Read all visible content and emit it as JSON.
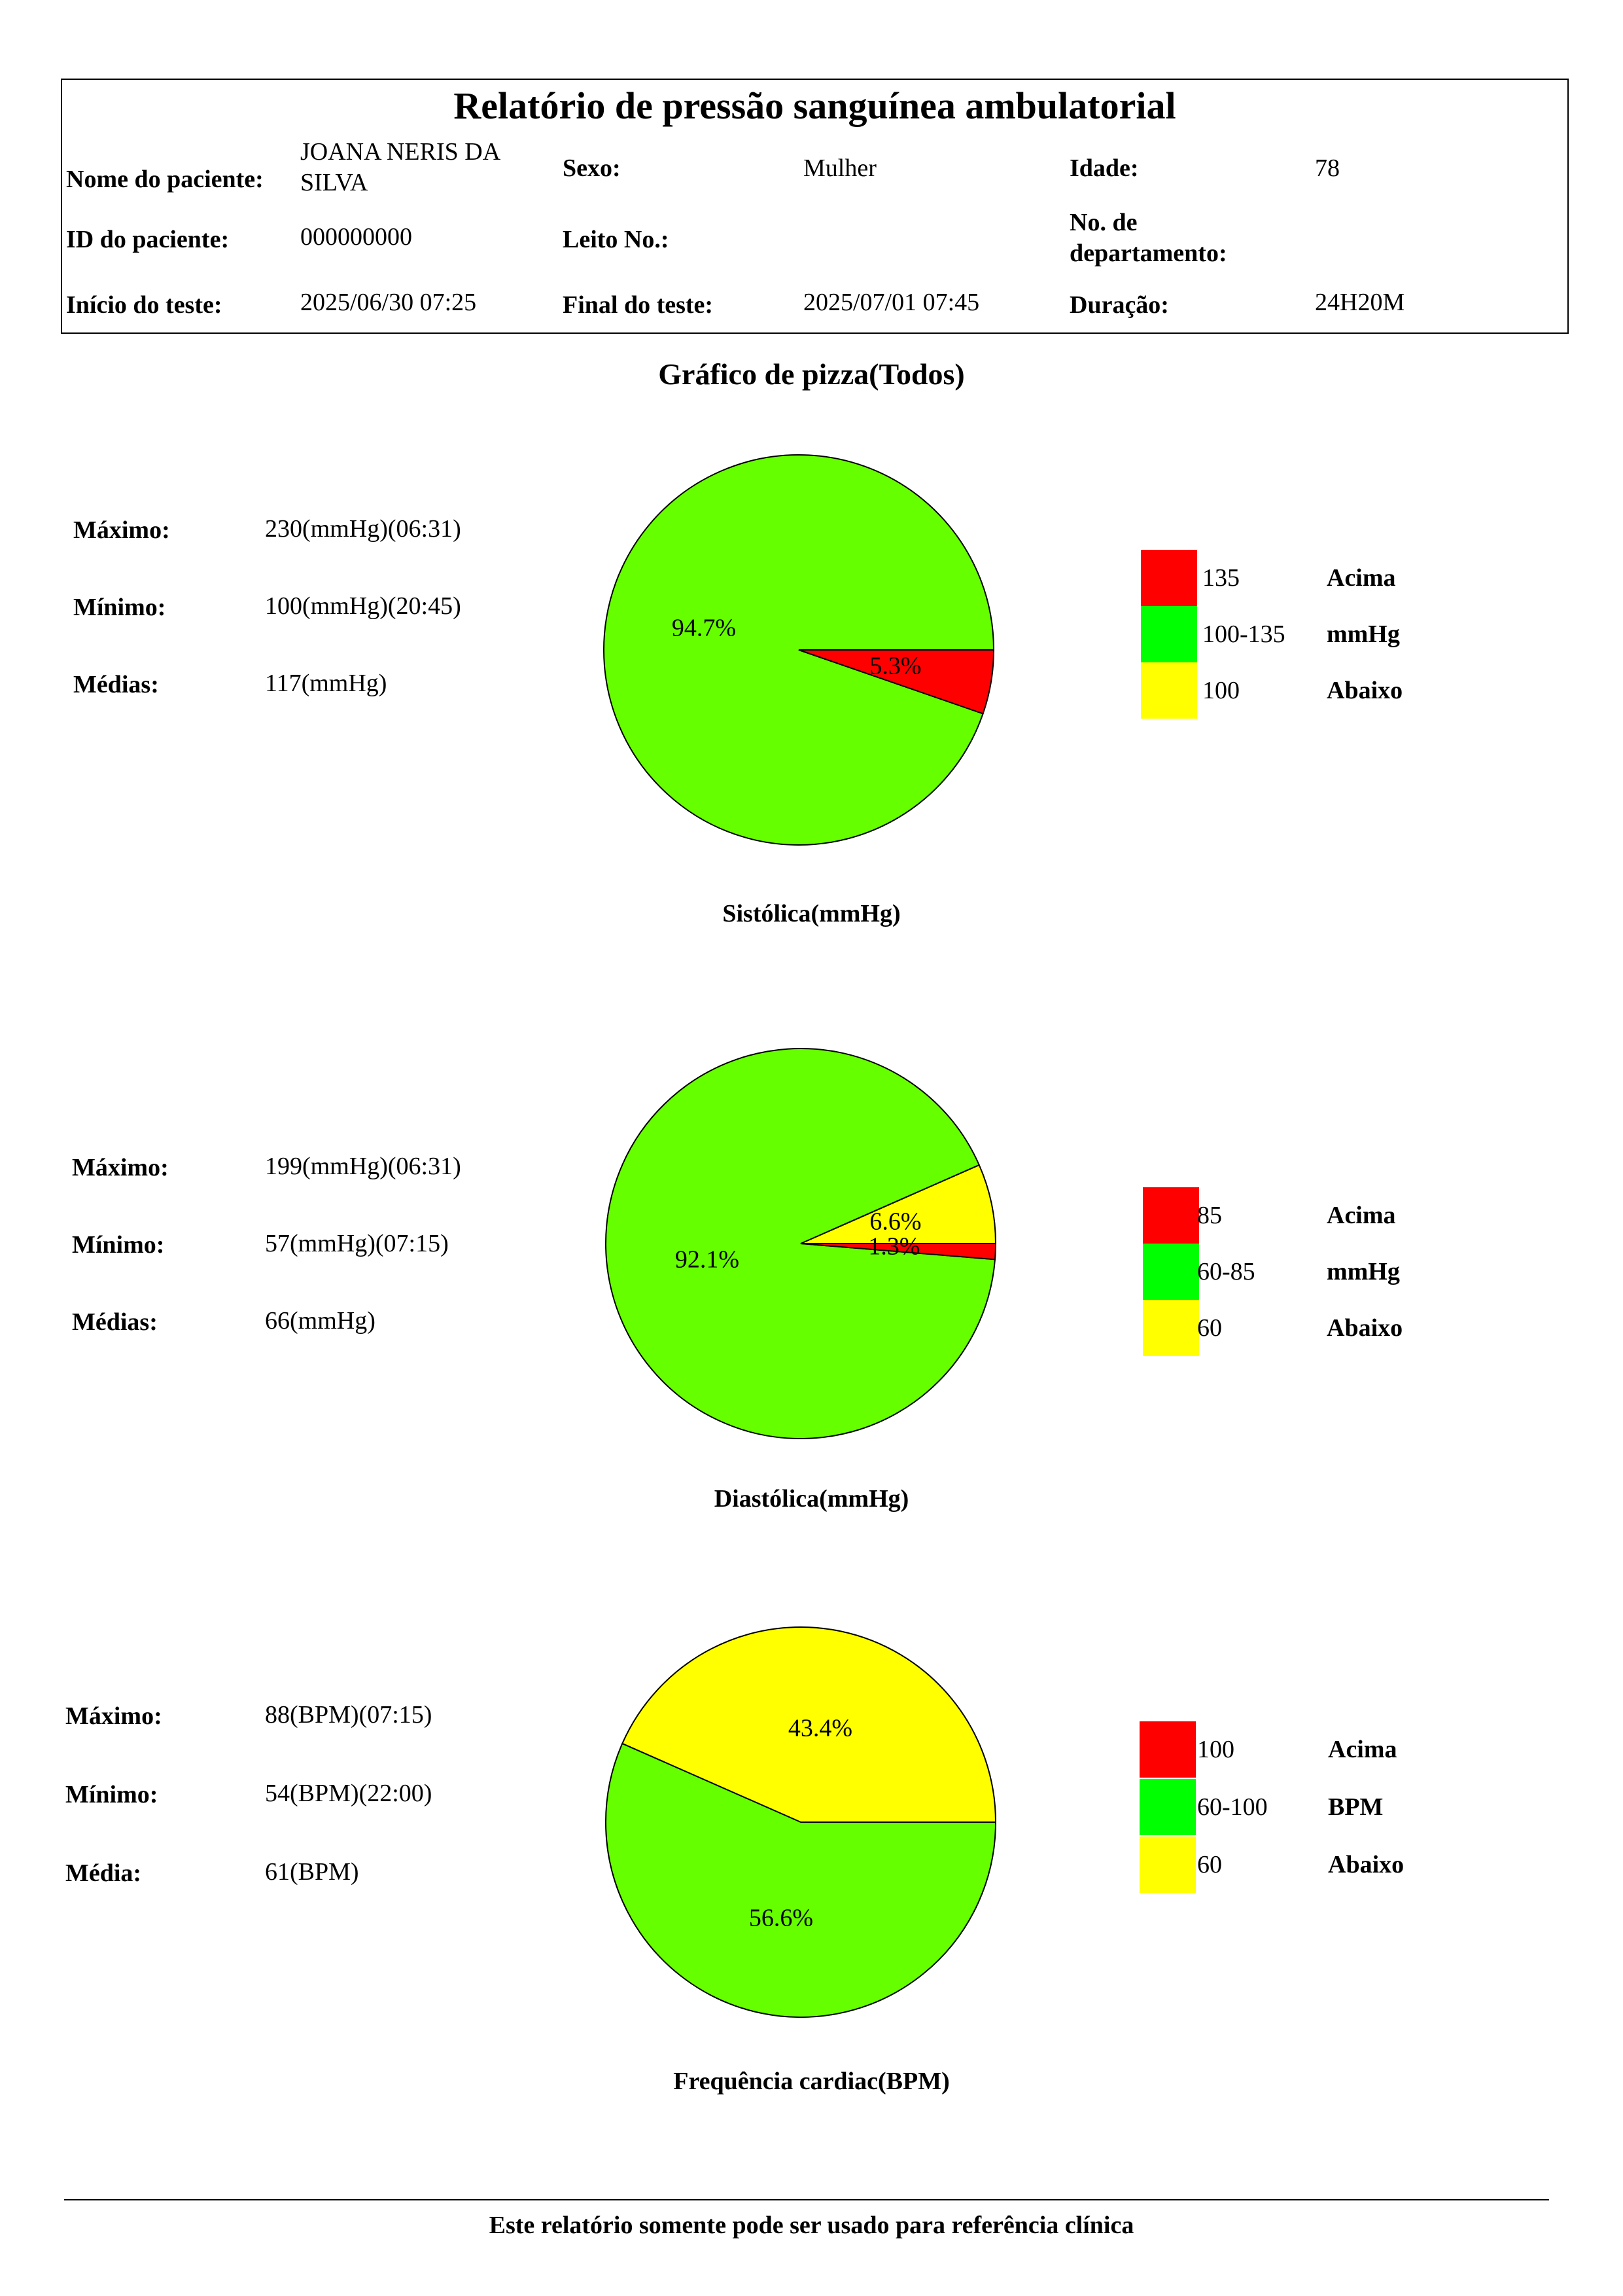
{
  "header": {
    "title": "Relatório de pressão sanguínea ambulatorial",
    "patient_name_label": "Nome do paciente:",
    "patient_name_line1": "JOANA NERIS DA",
    "patient_name_line2": "SILVA",
    "sex_label": "Sexo:",
    "sex_value": "Mulher",
    "age_label": "Idade:",
    "age_value": "78",
    "patient_id_label": "ID do paciente:",
    "patient_id_value": "000000000",
    "bed_label": "Leito No.:",
    "bed_value": "",
    "dept_label_line1": "No. de",
    "dept_label_line2": "departamento:",
    "dept_value": "",
    "start_label": "Início do teste:",
    "start_value": "2025/06/30 07:25",
    "end_label": "Final do teste:",
    "end_value": "2025/07/01 07:45",
    "duration_label": "Duração:",
    "duration_value": "24H20M"
  },
  "pie_section_title": "Gráfico de pizza(Todos)",
  "colors": {
    "above": "#ff0000",
    "normal_slice": "#66ff00",
    "normal_legend": "#00ff00",
    "below": "#ffff00"
  },
  "stats": [
    {
      "max_label": "Máximo:",
      "max_value": "230(mmHg)(06:31)",
      "min_label": "Mínimo:",
      "min_value": "100(mmHg)(20:45)",
      "avg_label": "Médias:",
      "avg_value": "117(mmHg)"
    },
    {
      "max_label": "Máximo:",
      "max_value": "199(mmHg)(06:31)",
      "min_label": "Mínimo:",
      "min_value": "57(mmHg)(07:15)",
      "avg_label": "Médias:",
      "avg_value": "66(mmHg)"
    },
    {
      "max_label": "Máximo:",
      "max_value": "88(BPM)(07:15)",
      "min_label": "Mínimo:",
      "min_value": "54(BPM)(22:00)",
      "avg_label": "Média:",
      "avg_value": "61(BPM)"
    }
  ],
  "legends": [
    {
      "above_value": "135",
      "normal_value": "100-135",
      "below_value": "100",
      "above_label": "Acima",
      "unit": "mmHg",
      "below_label": "Abaixo"
    },
    {
      "above_value": "85",
      "normal_value": "60-85",
      "below_value": "60",
      "above_label": "Acima",
      "unit": "mmHg",
      "below_label": "Abaixo"
    },
    {
      "above_value": "100",
      "normal_value": "60-100",
      "below_value": "60",
      "above_label": "Acima",
      "unit": "BPM",
      "below_label": "Abaixo"
    }
  ],
  "chart_data": [
    {
      "type": "pie",
      "title": "Sistólica(mmHg)",
      "slices": [
        {
          "category": "above",
          "value": 5.3,
          "label": "5.3%"
        },
        {
          "category": "normal",
          "value": 94.7,
          "label": "94.7%"
        }
      ]
    },
    {
      "type": "pie",
      "title": "Diastólica(mmHg)",
      "slices": [
        {
          "category": "above",
          "value": 1.3,
          "label": "1.3%"
        },
        {
          "category": "normal",
          "value": 92.1,
          "label": "92.1%"
        },
        {
          "category": "below",
          "value": 6.6,
          "label": "6.6%"
        }
      ]
    },
    {
      "type": "pie",
      "title": "Frequência cardiac(BPM)",
      "slices": [
        {
          "category": "normal",
          "value": 56.6,
          "label": "56.6%"
        },
        {
          "category": "below",
          "value": 43.4,
          "label": "43.4%"
        }
      ]
    }
  ],
  "footer_note": "Este relatório somente pode ser usado para referência clínica"
}
